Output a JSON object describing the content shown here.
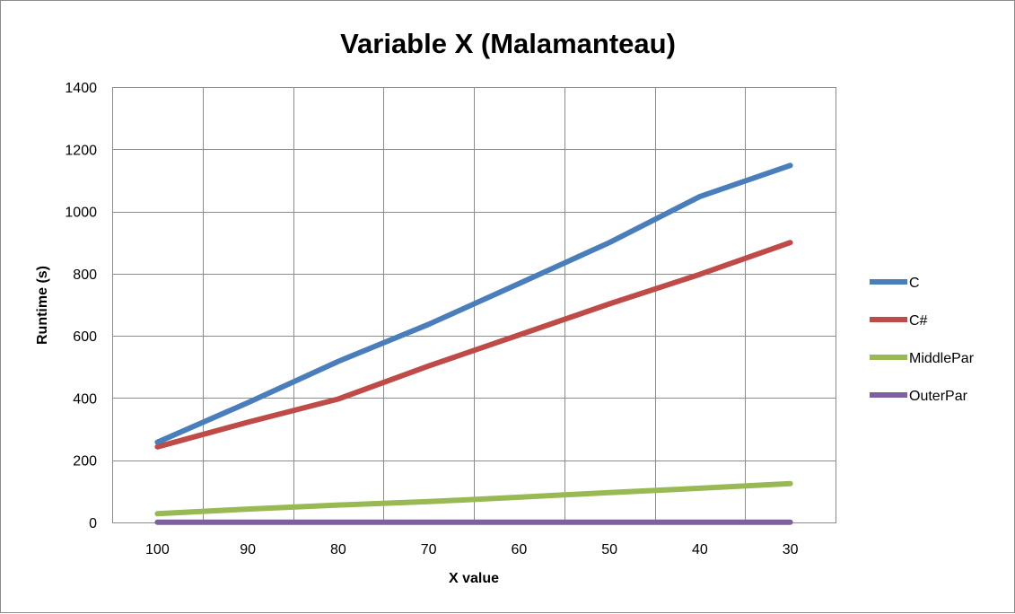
{
  "chart_data": {
    "type": "line",
    "title": "Variable X (Malamanteau)",
    "xlabel": "X value",
    "ylabel": "Runtime (s)",
    "categories": [
      "100",
      "90",
      "80",
      "70",
      "60",
      "50",
      "40",
      "30"
    ],
    "ylim": [
      0,
      1400
    ],
    "yticks": [
      0,
      200,
      400,
      600,
      800,
      1000,
      1200,
      1400
    ],
    "grid": true,
    "legend_position": "right",
    "series": [
      {
        "name": "C",
        "color": "#4a7ebb",
        "values": [
          258,
          385,
          518,
          637,
          768,
          900,
          1048,
          1148
        ]
      },
      {
        "name": "C#",
        "color": "#be4b48",
        "values": [
          243,
          322,
          397,
          503,
          603,
          703,
          798,
          900
        ]
      },
      {
        "name": "MiddlePar",
        "color": "#98b954",
        "values": [
          28,
          43,
          56,
          67,
          81,
          96,
          110,
          125
        ]
      },
      {
        "name": "OuterPar",
        "color": "#7d60a0",
        "values": [
          1,
          1,
          1,
          1,
          1,
          1,
          1,
          1
        ]
      }
    ]
  }
}
